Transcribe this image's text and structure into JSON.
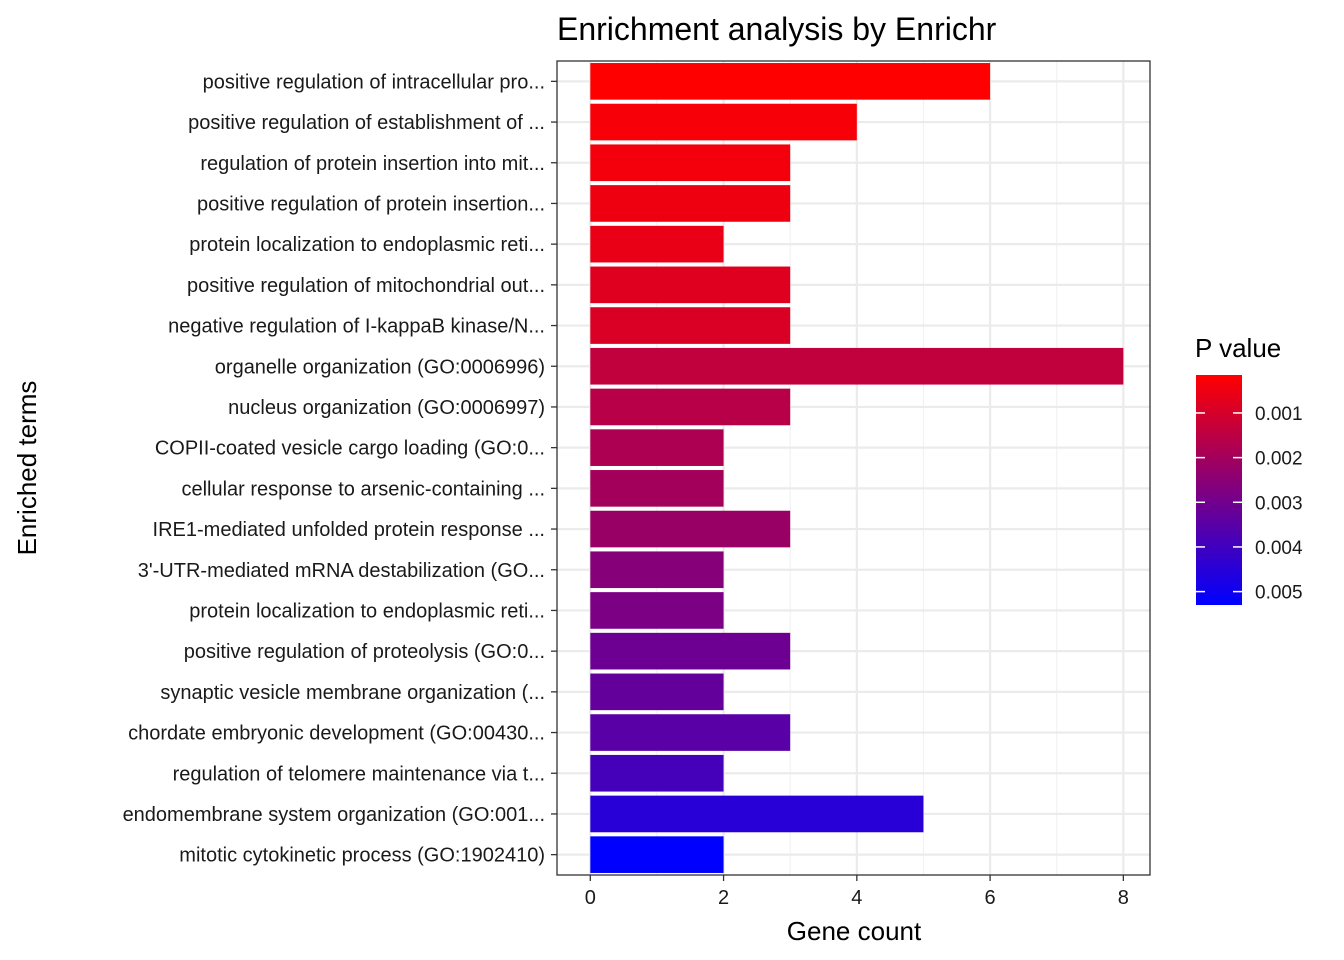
{
  "chart_data": {
    "type": "bar",
    "orientation": "horizontal",
    "title": "Enrichment analysis by Enrichr",
    "xlabel": "Gene count",
    "ylabel": "Enriched terms",
    "xlim": [
      -0.5,
      8.4
    ],
    "x_ticks": [
      0,
      2,
      4,
      6,
      8
    ],
    "grid": true,
    "categories": [
      "positive regulation of intracellular pro...",
      "positive regulation of establishment of ...",
      "regulation of protein insertion into mit...",
      "positive regulation of protein insertion...",
      "protein localization to endoplasmic reti...",
      "positive regulation of mitochondrial out...",
      "negative regulation of I-kappaB kinase/N...",
      "organelle organization (GO:0006996)",
      "nucleus organization (GO:0006997)",
      "COPII-coated vesicle cargo loading (GO:0...",
      "cellular response to arsenic-containing ...",
      "IRE1-mediated unfolded protein response ...",
      "3'-UTR-mediated mRNA destabilization (GO...",
      "protein localization to endoplasmic reti...",
      "positive regulation of proteolysis (GO:0...",
      "synaptic vesicle membrane organization (...",
      "chordate embryonic development (GO:00430...",
      "regulation of telomere maintenance via t...",
      "endomembrane system organization (GO:001...",
      "mitotic cytokinetic process (GO:1902410)"
    ],
    "values": [
      6,
      4,
      3,
      3,
      2,
      3,
      3,
      8,
      3,
      2,
      2,
      3,
      2,
      2,
      3,
      2,
      3,
      2,
      5,
      2
    ],
    "p_values": [
      0.00015,
      0.0003,
      0.0004,
      0.0005,
      0.0006,
      0.0008,
      0.0009,
      0.0014,
      0.0016,
      0.0018,
      0.002,
      0.0022,
      0.0026,
      0.0028,
      0.0031,
      0.0033,
      0.0035,
      0.0039,
      0.0045,
      0.0053
    ],
    "legend": {
      "title": "P value",
      "placement": "right",
      "range": [
        0.00015,
        0.0053
      ],
      "ticks": [
        0.001,
        0.002,
        0.003,
        0.004,
        0.005
      ],
      "tick_labels": [
        "0.001",
        "0.002",
        "0.003",
        "0.004",
        "0.005"
      ],
      "color_low": "#ff0000",
      "color_high": "#0000ff"
    },
    "colors": {
      "panel_border": "#333333",
      "grid_major": "#ebebeb",
      "grid_minor": "#f2f2f2"
    }
  }
}
